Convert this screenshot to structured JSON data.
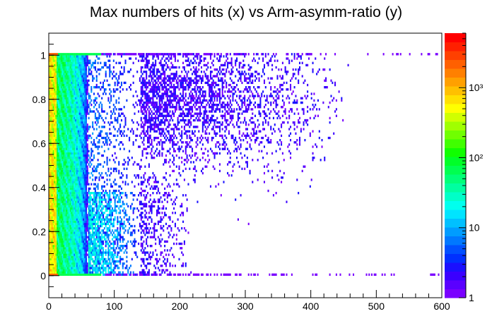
{
  "chart_data": {
    "type": "heatmap",
    "title": "Max numbers of hits (x) vs Arm-asymm-ratio (y)",
    "xlabel": "",
    "ylabel": "",
    "xlim": [
      0,
      600
    ],
    "ylim": [
      -0.1,
      1.1
    ],
    "x_ticks": [
      "0",
      "100",
      "200",
      "300",
      "400",
      "500",
      "600"
    ],
    "x_tick_values": [
      0,
      100,
      200,
      300,
      400,
      500,
      600
    ],
    "y_ticks": [
      "0",
      "0.2",
      "0.4",
      "0.6",
      "0.8",
      "1"
    ],
    "y_tick_values": [
      0,
      0.2,
      0.4,
      0.6,
      0.8,
      1.0
    ],
    "colorbar": {
      "scale": "log",
      "range": [
        1,
        6000
      ],
      "tick_labels": [
        "1",
        "10",
        "10²",
        "10³"
      ],
      "tick_values": [
        1,
        10,
        100,
        1000
      ],
      "palette": [
        "#7a00ff",
        "#5a00ff",
        "#3a00ff",
        "#1a10ff",
        "#0030ff",
        "#0050ff",
        "#0078ff",
        "#009cff",
        "#00c0ff",
        "#00e4ff",
        "#00ffee",
        "#00ffc8",
        "#00ffa0",
        "#00ff78",
        "#00ff50",
        "#00ff28",
        "#10ff00",
        "#40ff00",
        "#70ff00",
        "#a0ff00",
        "#d0ff00",
        "#ffff00",
        "#ffe000",
        "#ffc000",
        "#ffa000",
        "#ff8000",
        "#ff6000",
        "#ff4000",
        "#ff2000",
        "#ff0000"
      ]
    },
    "density_regions": [
      {
        "x": [
          0,
          15
        ],
        "y": [
          0.0,
          1.0
        ],
        "counts": "1000-3000"
      },
      {
        "x": [
          15,
          60
        ],
        "y": [
          0.0,
          1.0
        ],
        "counts": "30-300"
      },
      {
        "x": [
          60,
          130
        ],
        "y": [
          0.0,
          0.35
        ],
        "counts": "3-30"
      },
      {
        "x": [
          130,
          450
        ],
        "y": [
          0.4,
          1.0
        ],
        "counts": "1-3"
      },
      {
        "x": [
          0,
          600
        ],
        "y": [
          1.0,
          1.0
        ],
        "counts": "1-3000"
      }
    ]
  }
}
